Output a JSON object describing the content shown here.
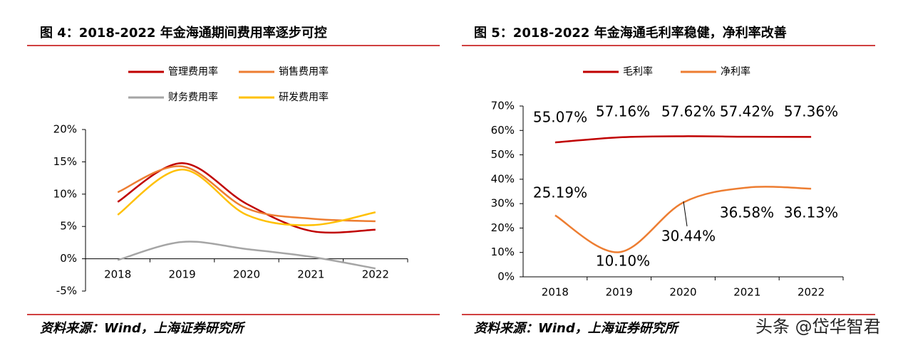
{
  "chart_data": [
    {
      "type": "line",
      "title": "图 4：2018-2022 年金海通期间费用率逐步可控",
      "categories": [
        "2018",
        "2019",
        "2020",
        "2021",
        "2022"
      ],
      "series": [
        {
          "name": "管理费用率",
          "color": "#c00000",
          "values": [
            8.8,
            14.8,
            8.5,
            4.3,
            4.5
          ]
        },
        {
          "name": "销售费用率",
          "color": "#ed7d31",
          "values": [
            10.3,
            14.3,
            7.8,
            6.2,
            5.8
          ]
        },
        {
          "name": "财务费用率",
          "color": "#a5a5a5",
          "values": [
            -0.2,
            2.6,
            1.5,
            0.3,
            -1.5
          ]
        },
        {
          "name": "研发费用率",
          "color": "#ffc000",
          "values": [
            6.8,
            13.8,
            6.8,
            5.2,
            7.2
          ]
        }
      ],
      "ylim": [
        -5,
        20
      ],
      "yticks": [
        {
          "value": -5,
          "label": "-5%"
        },
        {
          "value": 0,
          "label": "0%"
        },
        {
          "value": 5,
          "label": "5%"
        },
        {
          "value": 10,
          "label": "10%"
        },
        {
          "value": 15,
          "label": "15%"
        },
        {
          "value": 20,
          "label": "20%"
        }
      ],
      "source": "资料来源：Wind，上海证券研究所"
    },
    {
      "type": "line",
      "title": "图 5：2018-2022 年金海通毛利率稳健，净利率改善",
      "categories": [
        "2018",
        "2019",
        "2020",
        "2021",
        "2022"
      ],
      "series": [
        {
          "name": "毛利率",
          "color": "#c00000",
          "values": [
            55.07,
            57.16,
            57.62,
            57.42,
            57.36
          ],
          "value_labels": [
            "55.07%",
            "57.16%",
            "57.62%",
            "57.42%",
            "57.36%"
          ]
        },
        {
          "name": "净利率",
          "color": "#ed7d31",
          "values": [
            25.19,
            10.1,
            30.44,
            36.58,
            36.13
          ],
          "value_labels": [
            "25.19%",
            "10.10%",
            "30.44%",
            "36.58%",
            "36.13%"
          ]
        }
      ],
      "ylim": [
        0,
        70
      ],
      "yticks": [
        {
          "value": 0,
          "label": "0%"
        },
        {
          "value": 10,
          "label": "10%"
        },
        {
          "value": 20,
          "label": "20%"
        },
        {
          "value": 30,
          "label": "30%"
        },
        {
          "value": 40,
          "label": "40%"
        },
        {
          "value": 50,
          "label": "50%"
        },
        {
          "value": 60,
          "label": "60%"
        },
        {
          "value": 70,
          "label": "70%"
        }
      ],
      "source": "资料来源：Wind，上海证券研究所"
    }
  ],
  "watermark": "头条 @岱华智君"
}
